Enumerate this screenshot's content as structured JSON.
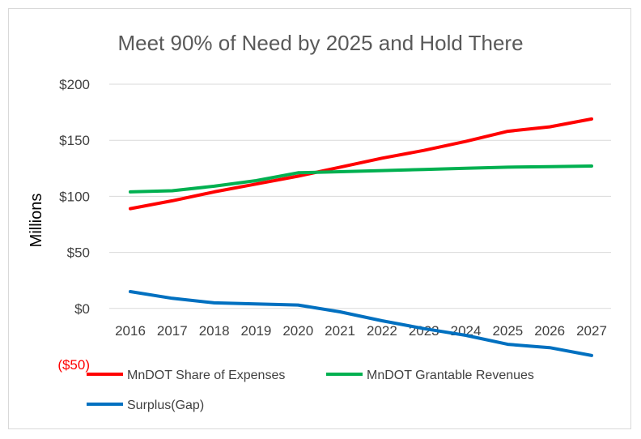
{
  "chart_data": {
    "type": "line",
    "title": "Meet 90% of Need by 2025 and Hold There",
    "ylabel": "Millions",
    "xlabel": "",
    "categories": [
      "2016",
      "2017",
      "2018",
      "2019",
      "2020",
      "2021",
      "2022",
      "2023",
      "2024",
      "2025",
      "2026",
      "2027"
    ],
    "ylim": [
      -50,
      200
    ],
    "yticks": [
      {
        "value": 200,
        "label": "$200",
        "color": "#404040"
      },
      {
        "value": 150,
        "label": "$150",
        "color": "#404040"
      },
      {
        "value": 100,
        "label": "$100",
        "color": "#404040"
      },
      {
        "value": 50,
        "label": "$50",
        "color": "#404040"
      },
      {
        "value": 0,
        "label": "$0",
        "color": "#404040"
      },
      {
        "value": -50,
        "label": "($50)",
        "color": "#ff0000"
      }
    ],
    "grid": true,
    "legend_position": "bottom",
    "series": [
      {
        "name": "MnDOT Share of Expenses",
        "color": "#ff0000",
        "values": [
          89,
          96,
          104,
          111,
          118,
          126,
          134,
          141,
          149,
          158,
          162,
          169
        ]
      },
      {
        "name": "MnDOT Grantable Revenues",
        "color": "#00b050",
        "values": [
          104,
          105,
          109,
          114,
          121,
          122,
          123,
          124,
          125,
          126,
          126.5,
          127
        ]
      },
      {
        "name": "Surplus(Gap)",
        "color": "#0070c0",
        "values": [
          15,
          9,
          5,
          4,
          3,
          -3,
          -11,
          -18,
          -24,
          -32,
          -35,
          -42
        ]
      }
    ]
  }
}
